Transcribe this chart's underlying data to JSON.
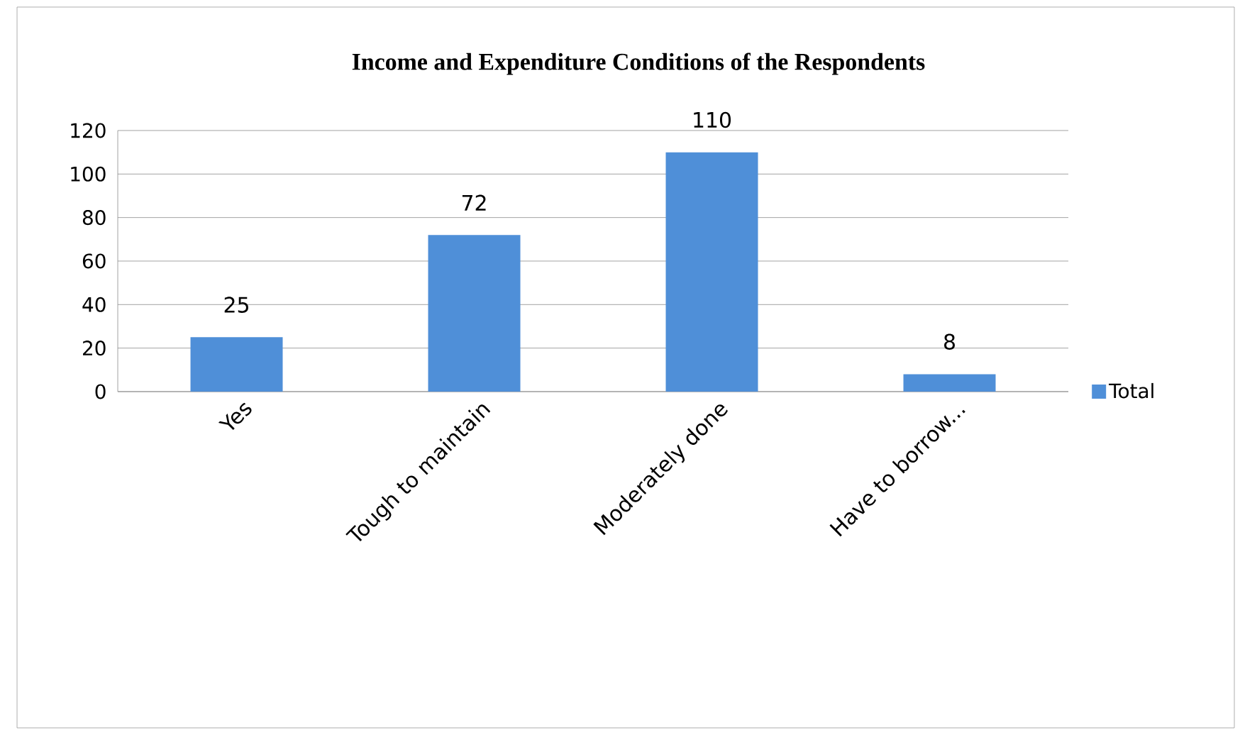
{
  "chart_data": {
    "type": "bar",
    "title": "Income and Expenditure Conditions of the Respondents",
    "categories": [
      "Yes",
      "Tough to maintain",
      "Moderately done",
      "Have to borrow..."
    ],
    "series": [
      {
        "name": "Total",
        "color": "#4f8fd8",
        "values": [
          25,
          72,
          110,
          8
        ]
      }
    ],
    "ylim": [
      0,
      120
    ],
    "yticks": [
      0,
      20,
      40,
      60,
      80,
      100,
      120
    ],
    "grid": "y",
    "legend": "right",
    "data_labels": true
  }
}
